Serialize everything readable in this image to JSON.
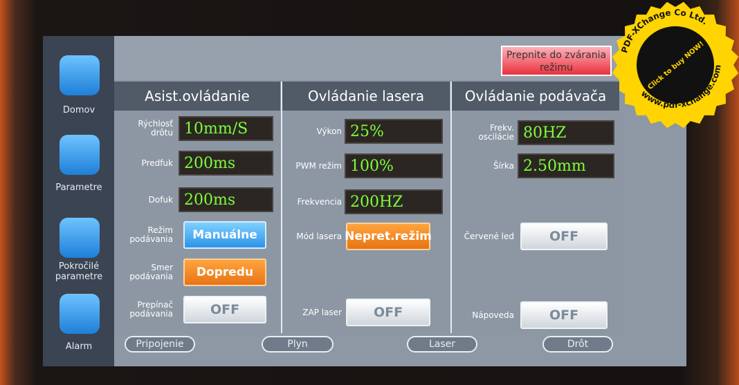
{
  "top_button": "Prepnite do zvárania režimu",
  "sidebar": [
    "Domov",
    "Parametre",
    "Pokročilé parametre",
    "Alarm"
  ],
  "panels": [
    {
      "title": "Asist.ovládanie",
      "rows": [
        {
          "label": "Rýchlosť drôtu",
          "value": "10mm/S"
        },
        {
          "label": "Predfuk",
          "value": "200ms"
        },
        {
          "label": "Dofuk",
          "value": "200ms"
        },
        {
          "label": "Režim podávania",
          "value": "Manuálne"
        },
        {
          "label": "Smer podávania",
          "value": "Dopredu"
        },
        {
          "label": "Prepínač podávania",
          "value": "OFF"
        }
      ]
    },
    {
      "title": "Ovládanie lasera",
      "rows": [
        {
          "label": "Výkon",
          "value": "25%"
        },
        {
          "label": "PWM režim",
          "value": "100%"
        },
        {
          "label": "Frekvencia",
          "value": "200HZ"
        },
        {
          "label": "Mód lasera",
          "value": "Nepret.režim"
        },
        {
          "label": "ZAP laser",
          "value": "OFF"
        }
      ]
    },
    {
      "title": "Ovládanie podávača",
      "rows": [
        {
          "label": "Frekv. oscilácie",
          "value": "80HZ"
        },
        {
          "label": "Šírka",
          "value": "2.50mm"
        },
        {
          "label": "Červené led",
          "value": "OFF"
        },
        {
          "label": "Nápoveda",
          "value": "OFF"
        }
      ]
    }
  ],
  "tabs": [
    "Pripojenie",
    "Plyn",
    "Laser",
    "Drôt"
  ],
  "stamp": {
    "line1": "PDF-XChange Co Ltd.",
    "line2": "Click to buy NOW!",
    "line3": "www.pdf-xchange.com"
  }
}
